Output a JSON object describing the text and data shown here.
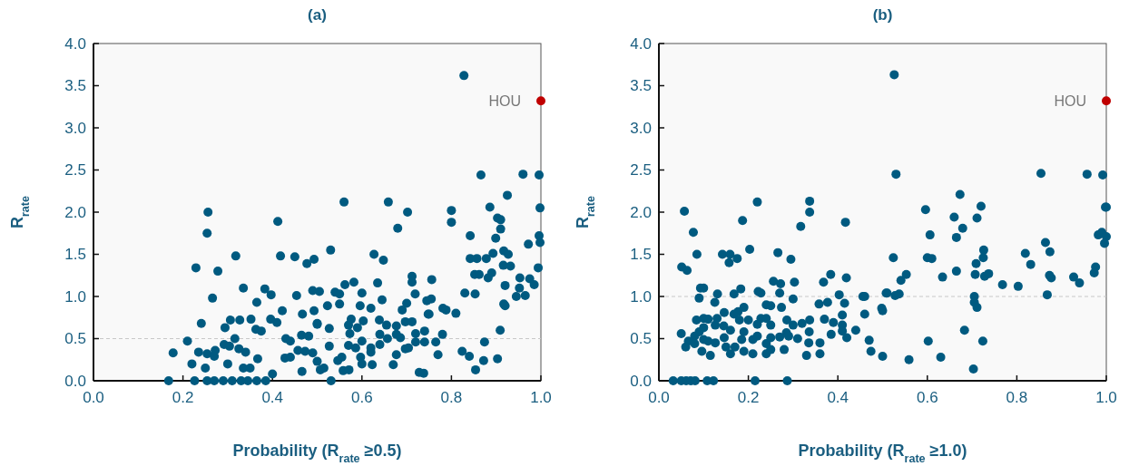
{
  "chart_data": [
    {
      "type": "scatter",
      "title": "(a)",
      "xlabel": "Probability (R$_{rate}$ ≥0.5)",
      "ylabel": "R$_{rate}$",
      "xlim": [
        0,
        1
      ],
      "ylim": [
        0,
        4
      ],
      "xticks": [
        {
          "value": 0,
          "label": "0.0"
        },
        {
          "value": 0.2,
          "label": "0.2"
        },
        {
          "value": 0.4,
          "label": "0.4"
        },
        {
          "value": 0.6,
          "label": "0.6"
        },
        {
          "value": 0.8,
          "label": "0.8"
        },
        {
          "value": 1,
          "label": "1.0"
        }
      ],
      "yticks": [
        {
          "value": 0,
          "label": "0.0"
        },
        {
          "value": 0.5,
          "label": "0.5"
        },
        {
          "value": 1,
          "label": "1.0"
        },
        {
          "value": 1.5,
          "label": "1.5"
        },
        {
          "value": 2,
          "label": "2.0"
        },
        {
          "value": 2.5,
          "label": "2.5"
        },
        {
          "value": 3,
          "label": "3.0"
        },
        {
          "value": 3.5,
          "label": "3.5"
        },
        {
          "value": 4,
          "label": "4.0"
        }
      ],
      "grid": false,
      "marker": "circle",
      "ref_lines": [
        {
          "axis": "y",
          "value": 0.5,
          "color": "#c8c8c8",
          "line_style": "dashed"
        }
      ],
      "annotations": [
        {
          "text": "HOU",
          "x": 1,
          "y": 3.32
        }
      ],
      "series": [
        {
          "color": "#005a80",
          "x": [
            0.168,
            0.178,
            0.21,
            0.22,
            0.235,
            0.241,
            0.229,
            0.256,
            0.254,
            0.278,
            0.266,
            0.226,
            0.254,
            0.27,
            0.29,
            0.31,
            0.33,
            0.345,
            0.365,
            0.385,
            0.25,
            0.254,
            0.27,
            0.272,
            0.294,
            0.306,
            0.327,
            0.318,
            0.335,
            0.292,
            0.304,
            0.316,
            0.325,
            0.34,
            0.335,
            0.35,
            0.3,
            0.352,
            0.365,
            0.363,
            0.375,
            0.383,
            0.397,
            0.396,
            0.41,
            0.412,
            0.418,
            0.45,
            0.477,
            0.493,
            0.422,
            0.454,
            0.467,
            0.493,
            0.49,
            0.505,
            0.367,
            0.4,
            0.43,
            0.44,
            0.428,
            0.44,
            0.466,
            0.457,
            0.473,
            0.49,
            0.465,
            0.481,
            0.5,
            0.507,
            0.828,
            0.56,
            0.659,
            0.702,
            0.68,
            0.53,
            0.627,
            0.648,
            0.8,
            0.8,
            0.866,
            0.96,
            0.996,
            0.925,
            0.886,
            0.998,
            0.903,
            0.91,
            0.91,
            0.899,
            0.996,
            0.998,
            0.972,
            0.842,
            0.842,
            0.857,
            0.878,
            0.893,
            0.917,
            0.927,
            0.916,
            0.932,
            0.852,
            0.862,
            0.882,
            0.89,
            0.994,
            0.953,
            0.975,
            0.952,
            0.965,
            0.985,
            0.92,
            0.917,
            0.92,
            0.945,
            0.83,
            0.853,
            0.81,
            0.909,
            0.874,
            0.824,
            0.84,
            0.872,
            0.903,
            0.854,
            0.77,
            0.78,
            0.781,
            0.788,
            0.75,
            0.755,
            0.745,
            0.756,
            0.712,
            0.712,
            0.719,
            0.7,
            0.69,
            0.645,
            0.635,
            0.6,
            0.582,
            0.562,
            0.54,
            0.55,
            0.55,
            0.523,
            0.596,
            0.62,
            0.748,
            0.576,
            0.603,
            0.639,
            0.655,
            0.677,
            0.697,
            0.712,
            0.57,
            0.59,
            0.527,
            0.5,
            0.573,
            0.64,
            0.657,
            0.677,
            0.686,
            0.72,
            0.74,
            0.72,
            0.74,
            0.765,
            0.697,
            0.704,
            0.677,
            0.64,
            0.62,
            0.62,
            0.6,
            0.57,
            0.586,
            0.527,
            0.597,
            0.6,
            0.623,
            0.67,
            0.546,
            0.555,
            0.558,
            0.571,
            0.515,
            0.531,
            0.728,
            0.738,
            0.5
          ],
          "values": [
            0,
            0.33,
            0.47,
            0.2,
            0.34,
            0.68,
            1.34,
            2,
            1.75,
            1.3,
            0.98,
            0,
            0,
            0,
            0,
            0,
            0,
            0,
            0,
            0,
            0.15,
            0.32,
            0.29,
            0.36,
            0.63,
            0.72,
            0.72,
            1.48,
            1.1,
            0.43,
            0.41,
            0.5,
            0.38,
            0.34,
            0.15,
            0.15,
            0.2,
            0.73,
            0.93,
            0.61,
            0.59,
            1.09,
            1.02,
            0.73,
            0.69,
            1.89,
            1.48,
            1.47,
            1.39,
            1.44,
            0.83,
            1.01,
            0.79,
            0.83,
            1.07,
            1.06,
            0.26,
            0.08,
            0.5,
            0.47,
            0.27,
            0.28,
            0.11,
            0.36,
            0.35,
            0.33,
            0.54,
            0.53,
            0.68,
            0.13,
            3.62,
            2.12,
            2.12,
            2,
            1.81,
            1.55,
            1.5,
            1.43,
            2.02,
            1.88,
            2.44,
            2.45,
            2.44,
            2.2,
            2.06,
            2.05,
            1.93,
            1.91,
            1.8,
            1.69,
            1.72,
            1.64,
            1.62,
            1.72,
            1.45,
            1.45,
            1.45,
            1.51,
            1.54,
            1.5,
            1.37,
            1.36,
            1.26,
            1.26,
            1.22,
            1.28,
            1.34,
            1.22,
            1.21,
            1.1,
            1.01,
            1.14,
            1.13,
            0.91,
            0.89,
            1,
            1.04,
            1.03,
            0.8,
            0.6,
            0.46,
            0.35,
            0.29,
            0.24,
            0.26,
            0.13,
            0.31,
            0.55,
            0.86,
            0.84,
            0.79,
            0.97,
            0.95,
            1.2,
            1.24,
            1.17,
            1.03,
            0.92,
            0.84,
            0.96,
            1.16,
            1.04,
            1.17,
            1.14,
            1.05,
            1.03,
            0.91,
            0.89,
            0.89,
            0.86,
            0.79,
            0.73,
            0.71,
            0.72,
            0.66,
            0.65,
            0.7,
            0.7,
            0.66,
            0.63,
            0.62,
            0.67,
            0.56,
            0.55,
            0.5,
            0.55,
            0.51,
            0.56,
            0.59,
            0.46,
            0.46,
            0.46,
            0.38,
            0.39,
            0.31,
            0.43,
            0.39,
            0.34,
            0.47,
            0.42,
            0.39,
            0.41,
            0.28,
            0.2,
            0.19,
            0.19,
            0.24,
            0.28,
            0.12,
            0.13,
            0.15,
            0,
            0.1,
            0.09,
            0.23
          ]
        },
        {
          "color": "#c00000",
          "x": [
            1
          ],
          "values": [
            3.32
          ]
        }
      ]
    },
    {
      "type": "scatter",
      "title": "(b)",
      "xlabel": "Probability (R$_{rate}$ ≥1.0)",
      "ylabel": "R$_{rate}$",
      "xlim": [
        0,
        1
      ],
      "ylim": [
        0,
        4
      ],
      "xticks": [
        {
          "value": 0,
          "label": "0.0"
        },
        {
          "value": 0.2,
          "label": "0.2"
        },
        {
          "value": 0.4,
          "label": "0.4"
        },
        {
          "value": 0.6,
          "label": "0.6"
        },
        {
          "value": 0.8,
          "label": "0.8"
        },
        {
          "value": 1,
          "label": "1.0"
        }
      ],
      "yticks": [
        {
          "value": 0,
          "label": "0.0"
        },
        {
          "value": 0.5,
          "label": "0.5"
        },
        {
          "value": 1,
          "label": "1.0"
        },
        {
          "value": 1.5,
          "label": "1.5"
        },
        {
          "value": 2,
          "label": "2.0"
        },
        {
          "value": 2.5,
          "label": "2.5"
        },
        {
          "value": 3,
          "label": "3.0"
        },
        {
          "value": 3.5,
          "label": "3.5"
        },
        {
          "value": 4,
          "label": "4.0"
        }
      ],
      "grid": false,
      "marker": "circle",
      "ref_lines": [
        {
          "axis": "y",
          "value": 1,
          "color": "#c8c8c8",
          "line_style": "dashed"
        }
      ],
      "annotations": [
        {
          "text": "HOU",
          "x": 1,
          "y": 3.32
        }
      ],
      "series": [
        {
          "color": "#005a80",
          "x": [
            0.057,
            0.077,
            0.22,
            0.337,
            0.337,
            0.187,
            0.317,
            0.417,
            0.203,
            0.085,
            0.142,
            0.159,
            0.175,
            0.157,
            0.266,
            0.295,
            0.051,
            0.063,
            0.384,
            0.419,
            0.368,
            0.303,
            0.272,
            0.256,
            0.183,
            0.093,
            0.1,
            0.131,
            0.168,
            0.222,
            0.228,
            0.27,
            0.3,
            0.09,
            0.125,
            0.24,
            0.25,
            0.274,
            0.358,
            0.377,
            0.403,
            0.415,
            0.456,
            0.46,
            0.508,
            0.46,
            0.41,
            0.5,
            0.146,
            0.168,
            0.177,
            0.19,
            0.084,
            0.1,
            0.11,
            0.13,
            0.126,
            0.18,
            0.2,
            0.228,
            0.24,
            0.286,
            0.32,
            0.337,
            0.37,
            0.39,
            0.41,
            0.44,
            0.145,
            0.16,
            0.19,
            0.22,
            0.25,
            0.3,
            0.336,
            0.385,
            0.41,
            0.05,
            0.08,
            0.09,
            0.1,
            0.285,
            0.29,
            0.31,
            0.335,
            0.36,
            0.42,
            0.47,
            0.066,
            0.06,
            0.08,
            0.1,
            0.11,
            0.126,
            0.146,
            0.15,
            0.17,
            0.185,
            0.21,
            0.22,
            0.24,
            0.25,
            0.27,
            0.096,
            0.115,
            0.16,
            0.19,
            0.21,
            0.24,
            0.25,
            0.28,
            0.33,
            0.36,
            0.032,
            0.05,
            0.061,
            0.071,
            0.081,
            0.108,
            0.122,
            0.215,
            0.287,
            0.526,
            0.53,
            0.673,
            0.72,
            0.596,
            0.66,
            0.711,
            0.679,
            0.606,
            0.665,
            0.524,
            0.6,
            0.61,
            0.726,
            0.725,
            0.709,
            0.707,
            0.665,
            0.634,
            0.553,
            0.541,
            0.728,
            0.737,
            0.768,
            0.803,
            0.819,
            0.831,
            0.854,
            0.864,
            0.874,
            0.873,
            0.877,
            0.868,
            0.927,
            0.94,
            0.957,
            0.992,
            0.976,
            0.973,
            0.998,
            1,
            0.982,
            0.99,
            1,
            0.996,
            0.51,
            0.528,
            0.537,
            0.498,
            0.705,
            0.705,
            0.711,
            0.683,
            0.602,
            0.724,
            0.474,
            0.5,
            0.559,
            0.63,
            0.703
          ],
          "values": [
            2.01,
            1.76,
            2.12,
            2.13,
            2,
            1.9,
            1.83,
            1.88,
            1.56,
            1.5,
            1.5,
            1.5,
            1.45,
            1.4,
            1.52,
            1.44,
            1.35,
            1.31,
            1.26,
            1.22,
            1.17,
            1.17,
            1.15,
            1.18,
            1.09,
            1.1,
            1.1,
            1.03,
            1.03,
            1.06,
            1.04,
            1.04,
            0.97,
            0.98,
            0.93,
            0.9,
            0.89,
            0.87,
            0.91,
            0.93,
            1.02,
            0.92,
            1,
            1,
            1.04,
            0.79,
            0.78,
            0.83,
            0.81,
            0.79,
            0.82,
            0.87,
            0.72,
            0.74,
            0.73,
            0.74,
            0.66,
            0.72,
            0.72,
            0.74,
            0.74,
            0.72,
            0.68,
            0.72,
            0.73,
            0.69,
            0.66,
            0.6,
            0.65,
            0.6,
            0.58,
            0.67,
            0.66,
            0.66,
            0.58,
            0.55,
            0.59,
            0.56,
            0.53,
            0.58,
            0.63,
            0.57,
            0.53,
            0.5,
            0.45,
            0.45,
            0.51,
            0.48,
            0.47,
            0.4,
            0.44,
            0.49,
            0.47,
            0.45,
            0.51,
            0.4,
            0.4,
            0.49,
            0.49,
            0.53,
            0.44,
            0.51,
            0.52,
            0.35,
            0.3,
            0.32,
            0.35,
            0.32,
            0.32,
            0.37,
            0.37,
            0.3,
            0.32,
            0,
            0,
            0,
            0,
            0,
            0,
            0,
            0,
            0,
            3.63,
            2.45,
            2.21,
            2.07,
            2.03,
            1.94,
            1.93,
            1.81,
            1.73,
            1.7,
            1.46,
            1.46,
            1.45,
            1.55,
            1.46,
            1.39,
            1.26,
            1.3,
            1.23,
            1.26,
            1.19,
            1.24,
            1.27,
            1.14,
            1.12,
            1.51,
            1.38,
            2.46,
            1.64,
            1.53,
            1.25,
            1.22,
            1.02,
            1.23,
            1.16,
            2.45,
            2.44,
            1.35,
            1.28,
            2.06,
            2.06,
            1.73,
            1.76,
            1.71,
            1.63,
            1.04,
            1.01,
            1.03,
            0.86,
            1,
            0.93,
            0.87,
            0.6,
            0.47,
            0.47,
            0.35,
            0.29,
            0.25,
            0.28,
            0.14
          ]
        },
        {
          "color": "#c00000",
          "x": [
            1
          ],
          "values": [
            3.32
          ]
        }
      ]
    }
  ]
}
